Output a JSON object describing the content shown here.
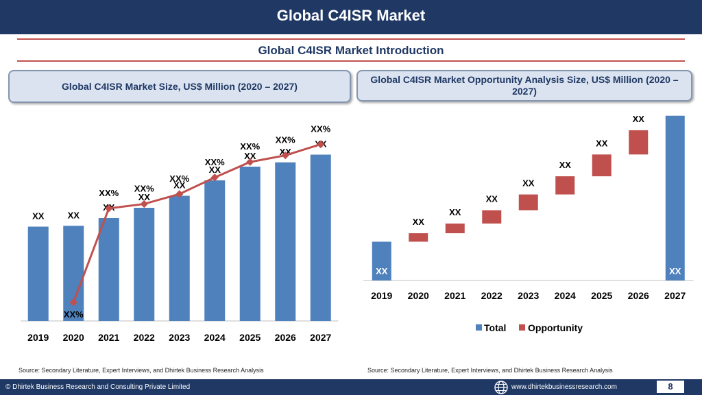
{
  "header": {
    "title": "Global C4ISR Market"
  },
  "section_title": "Global C4ISR Market  Introduction",
  "left_box_title": "Global C4ISR Market  Size, US$ Million (2020 – 2027)",
  "right_box_title": "Global C4ISR Market  Opportunity Analysis Size, US$ Million (2020 – 2027)",
  "left_source": "Source: Secondary Literature, Expert Interviews, and Dhirtek Business Research Analysis",
  "right_source": "Source: Secondary Literature, Expert Interviews, and Dhirtek Business Research Analysis",
  "footer": {
    "copyright": "© Dhirtek Business Research and Consulting Private Limited",
    "website": "www.dhirtekbusinessresearch.com",
    "page_number": "8",
    "globe_icon": "globe-icon"
  },
  "colors": {
    "navy": "#1f3864",
    "bar_blue": "#4f81bd",
    "line_red": "#c0504d",
    "opp_red": "#c0504d"
  },
  "chart_data": [
    {
      "type": "bar",
      "categories": [
        "2019",
        "2020",
        "2021",
        "2022",
        "2023",
        "2024",
        "2025",
        "2026",
        "2027"
      ],
      "series": [
        {
          "values": [
            55,
            55.5,
            60,
            66,
            73,
            82,
            90,
            92.5,
            97
          ],
          "labels": [
            "XX",
            "XX",
            "XX",
            "XX",
            "XX",
            "XX",
            "XX",
            "XX",
            "XX"
          ]
        }
      ],
      "line_series": [
        {
          "values": [
            -3.5,
            5,
            5.4,
            6.3,
            7.8,
            9.2,
            9.8,
            10.8
          ],
          "x_categories": [
            "2020",
            "2021",
            "2022",
            "2023",
            "2024",
            "2025",
            "2026",
            "2027"
          ],
          "labels": [
            "XX%",
            "XX%",
            "XX%",
            "XX%",
            "XX%",
            "XX%",
            "XX%",
            "XX%"
          ]
        }
      ],
      "ylim": [
        0,
        100
      ],
      "line_ylim": [
        -5,
        13
      ]
    },
    {
      "type": "bar",
      "categories": [
        "2019",
        "2020",
        "2021",
        "2022",
        "2023",
        "2024",
        "2025",
        "2026",
        "2027"
      ],
      "series": [
        {
          "name": "Total",
          "values": [
            16,
            null,
            null,
            null,
            null,
            null,
            null,
            null,
            68
          ],
          "labels": [
            "XX",
            "",
            "",
            "",
            "",
            "",
            "",
            "",
            "XX"
          ]
        },
        {
          "name": "Opportunity",
          "base": [
            null,
            16,
            19.5,
            23.5,
            29,
            35.5,
            43,
            52,
            null
          ],
          "values": [
            null,
            3.5,
            4,
            5.5,
            6.5,
            7.5,
            9,
            10,
            null
          ],
          "labels": [
            "",
            "XX",
            "XX",
            "XX",
            "XX",
            "XX",
            "XX",
            "XX",
            ""
          ]
        }
      ],
      "ylim": [
        0,
        75
      ],
      "legend": "bottom"
    }
  ]
}
